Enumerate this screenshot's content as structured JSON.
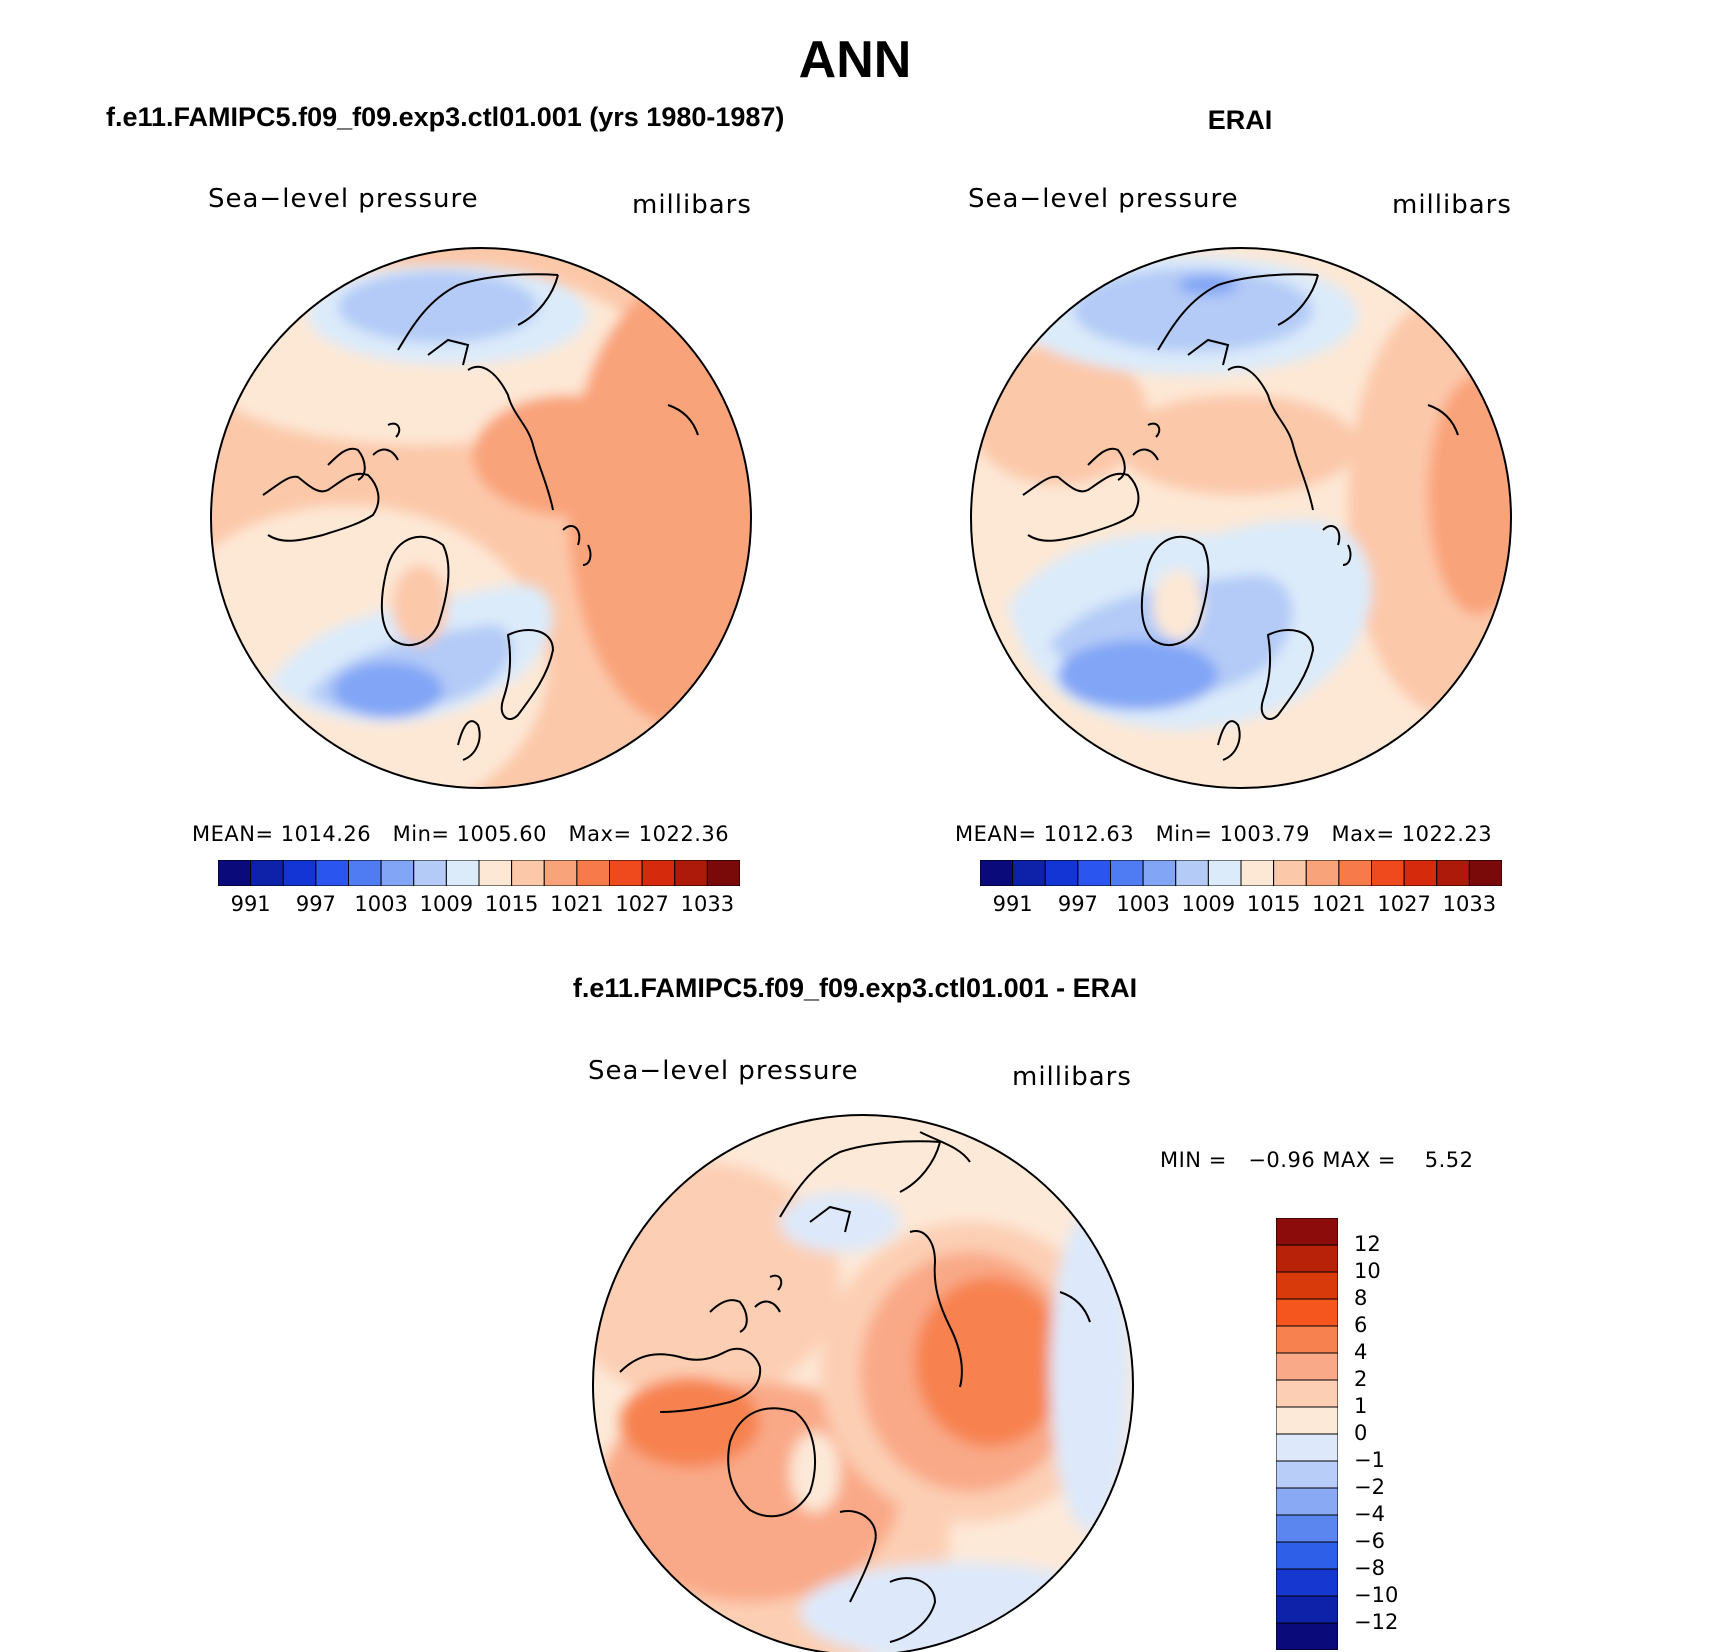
{
  "title": "ANN",
  "panels": {
    "model": {
      "title": "f.e11.FAMIPC5.f09_f09.exp3.ctl01.001 (yrs 1980-1987)",
      "variable": "Sea−level pressure",
      "units": "millibars",
      "stats": {
        "mean_label": "MEAN=",
        "mean": "1014.26",
        "min_label": "Min=",
        "min": "1005.60",
        "max_label": "Max=",
        "max": "1022.36"
      }
    },
    "obs": {
      "title": "ERAI",
      "variable": "Sea−level pressure",
      "units": "millibars",
      "stats": {
        "mean_label": "MEAN=",
        "mean": "1012.63",
        "min_label": "Min=",
        "min": "1003.79",
        "max_label": "Max=",
        "max": "1022.23"
      }
    },
    "diff": {
      "title": "f.e11.FAMIPC5.f09_f09.exp3.ctl01.001 - ERAI",
      "variable": "Sea−level pressure",
      "units": "millibars",
      "stats": {
        "min_label": "MIN =",
        "min": "−0.96",
        "max_label": "MAX =",
        "max": "5.52"
      }
    }
  },
  "colorbar_main": {
    "colors": [
      "#0a0a7a",
      "#0d22a8",
      "#1335d6",
      "#2a55ee",
      "#4f7cf2",
      "#82a5f6",
      "#b4cbf7",
      "#dcebfa",
      "#fde8d5",
      "#fcc8aa",
      "#f9a37a",
      "#f77a4a",
      "#ef4a1e",
      "#d52a0c",
      "#ae1a0a",
      "#7a0a0a"
    ],
    "tick_labels": [
      "991",
      "997",
      "1003",
      "1009",
      "1015",
      "1021",
      "1027",
      "1033"
    ]
  },
  "colorbar_diff": {
    "colors_top_to_bottom": [
      "#8c0b0b",
      "#b82208",
      "#d93a0c",
      "#f5561e",
      "#f7824f",
      "#f9a987",
      "#fccfb4",
      "#fde9d8",
      "#dde9fa",
      "#b8cdf7",
      "#89a9f4",
      "#5b86f0",
      "#2e5fe8",
      "#1638d0",
      "#0d22a8",
      "#0a0a7a"
    ],
    "tick_labels_top_to_bottom": [
      "12",
      "10",
      "8",
      "6",
      "4",
      "2",
      "1",
      "0",
      "−1",
      "−2",
      "−4",
      "−6",
      "−8",
      "−10",
      "−12"
    ]
  },
  "colors": {
    "coastline": "#000000",
    "map_border": "#000000"
  }
}
